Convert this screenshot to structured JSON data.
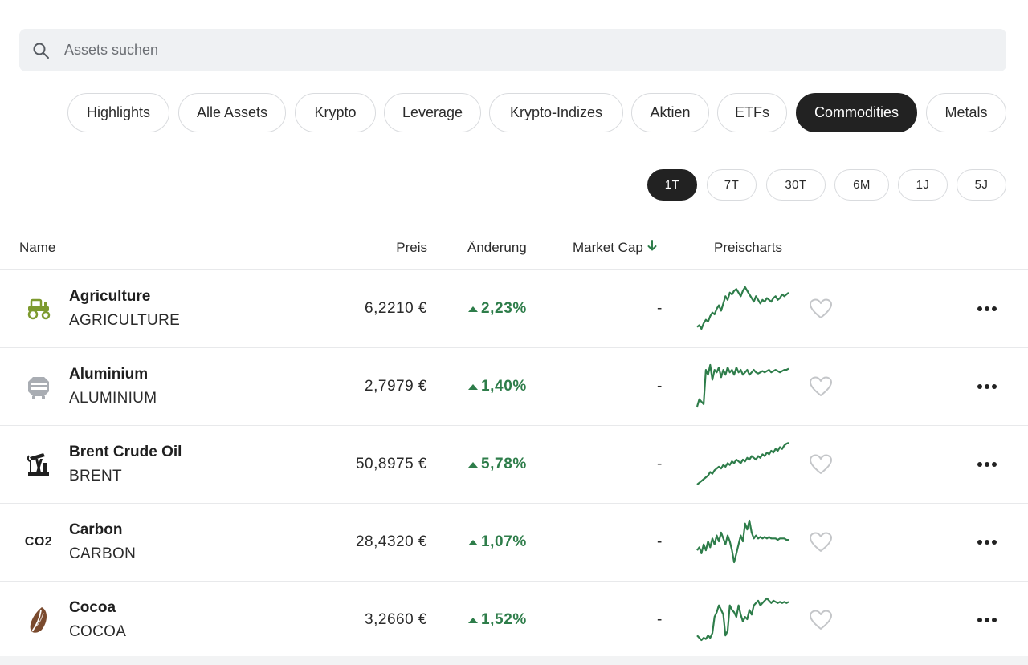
{
  "search": {
    "placeholder": "Assets suchen",
    "value": ""
  },
  "filters": {
    "items": [
      {
        "label": "Highlights",
        "active": false
      },
      {
        "label": "Alle Assets",
        "active": false
      },
      {
        "label": "Krypto",
        "active": false
      },
      {
        "label": "Leverage",
        "active": false
      },
      {
        "label": "Krypto-Indizes",
        "active": false
      },
      {
        "label": "Aktien",
        "active": false
      },
      {
        "label": "ETFs",
        "active": false
      },
      {
        "label": "Commodities",
        "active": true
      },
      {
        "label": "Metals",
        "active": false
      }
    ]
  },
  "periods": {
    "items": [
      {
        "label": "1T",
        "active": true
      },
      {
        "label": "7T",
        "active": false
      },
      {
        "label": "30T",
        "active": false
      },
      {
        "label": "6M",
        "active": false
      },
      {
        "label": "1J",
        "active": false
      },
      {
        "label": "5J",
        "active": false
      }
    ]
  },
  "table": {
    "headers": {
      "name": "Name",
      "price": "Preis",
      "change": "Änderung",
      "market_cap": "Market Cap",
      "charts": "Preischarts"
    },
    "sort_column": "market_cap",
    "sort_direction": "desc",
    "rows": [
      {
        "name": "Agriculture",
        "ticker": "AGRICULTURE",
        "price": "6,2210 €",
        "change": "2,23%",
        "market_cap": "-",
        "icon": "tractor-icon",
        "icon_color": "#7d9a2e",
        "sparkline": [
          10,
          12,
          8,
          14,
          18,
          16,
          22,
          26,
          24,
          30,
          34,
          28,
          36,
          44,
          40,
          48,
          46,
          50,
          52,
          48,
          44,
          50,
          54,
          50,
          46,
          42,
          38,
          44,
          40,
          36,
          40,
          38,
          42,
          40,
          38,
          42,
          44,
          40,
          42,
          46,
          44,
          46,
          48
        ]
      },
      {
        "name": "Aluminium",
        "ticker": "ALUMINIUM",
        "price": "2,7979 €",
        "change": "1,40%",
        "market_cap": "-",
        "icon": "aluminium-ingot-icon",
        "icon_color": "#a9adb3",
        "sparkline": [
          20,
          26,
          24,
          22,
          50,
          46,
          54,
          42,
          50,
          48,
          52,
          44,
          50,
          46,
          52,
          48,
          50,
          46,
          52,
          48,
          50,
          46,
          48,
          50,
          46,
          48,
          50,
          48,
          47,
          48,
          49,
          48,
          49,
          50,
          48,
          49,
          50,
          49,
          48,
          49,
          50,
          50,
          51
        ]
      },
      {
        "name": "Brent Crude Oil",
        "ticker": "BRENT",
        "price": "50,8975 €",
        "change": "5,78%",
        "market_cap": "-",
        "icon": "oil-pump-icon",
        "icon_color": "#1f1f1f",
        "sparkline": [
          8,
          10,
          12,
          14,
          16,
          18,
          22,
          20,
          24,
          26,
          28,
          26,
          30,
          28,
          32,
          30,
          34,
          32,
          36,
          34,
          32,
          36,
          34,
          38,
          36,
          40,
          38,
          36,
          40,
          38,
          42,
          40,
          44,
          42,
          46,
          44,
          48,
          46,
          50,
          48,
          52,
          54,
          55
        ]
      },
      {
        "name": "Carbon",
        "ticker": "CARBON",
        "price": "28,4320 €",
        "change": "1,07%",
        "market_cap": "-",
        "icon": "co2-icon",
        "icon_color": "#1f1f1f",
        "sparkline": [
          30,
          32,
          28,
          34,
          30,
          36,
          32,
          38,
          34,
          40,
          36,
          42,
          38,
          34,
          40,
          36,
          30,
          22,
          28,
          34,
          40,
          36,
          48,
          44,
          50,
          42,
          38,
          40,
          38,
          39,
          38,
          39,
          38,
          39,
          38,
          38,
          38,
          37,
          38,
          38,
          38,
          37,
          37
        ]
      },
      {
        "name": "Cocoa",
        "ticker": "COCOA",
        "price": "3,2660 €",
        "change": "1,52%",
        "market_cap": "-",
        "icon": "cocoa-bean-icon",
        "icon_color": "#7a4a2e",
        "sparkline": [
          14,
          12,
          10,
          12,
          11,
          14,
          12,
          16,
          30,
          34,
          40,
          36,
          32,
          14,
          18,
          40,
          36,
          34,
          30,
          40,
          32,
          26,
          30,
          28,
          36,
          32,
          40,
          42,
          44,
          40,
          42,
          44,
          46,
          44,
          42,
          44,
          43,
          42,
          43,
          42,
          43,
          42,
          43
        ]
      }
    ]
  }
}
